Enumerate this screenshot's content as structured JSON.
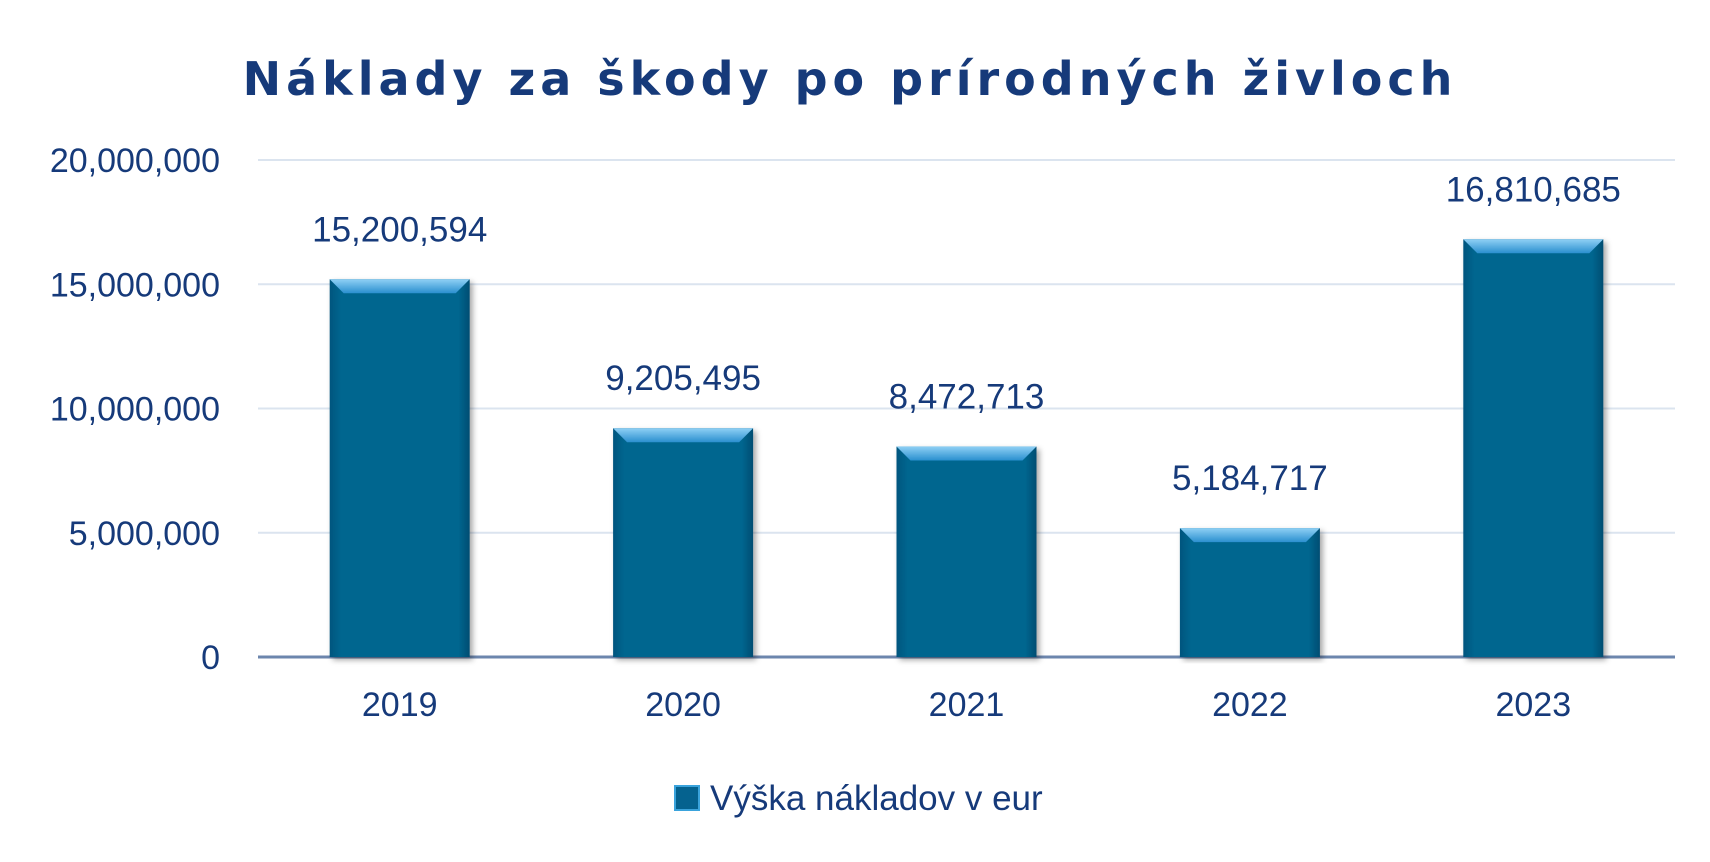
{
  "chart_data": {
    "type": "bar",
    "title": "Náklady za škody po prírodných živloch",
    "xlabel": "",
    "ylabel": "",
    "categories": [
      "2019",
      "2020",
      "2021",
      "2022",
      "2023"
    ],
    "series": [
      {
        "name": "Výška nákladov v eur",
        "values": [
          15200594,
          9205495,
          8472713,
          5184717,
          16810685
        ],
        "labels": [
          "15,200,594",
          "9,205,495",
          "8,472,713",
          "5,184,717",
          "16,810,685"
        ]
      }
    ],
    "ylim": [
      0,
      20000000
    ],
    "yticks": [
      0,
      5000000,
      10000000,
      15000000,
      20000000
    ],
    "ytick_labels": [
      "0",
      "5,000,000",
      "10,000,000",
      "15,000,000",
      "20,000,000"
    ],
    "grid": true,
    "legend": "bottom",
    "colors": {
      "bar": "#05628f",
      "bar_top": "#3aa3dc",
      "text": "#163a7a",
      "grid": "#dbe4ef",
      "axis": "#6c86ad"
    }
  }
}
